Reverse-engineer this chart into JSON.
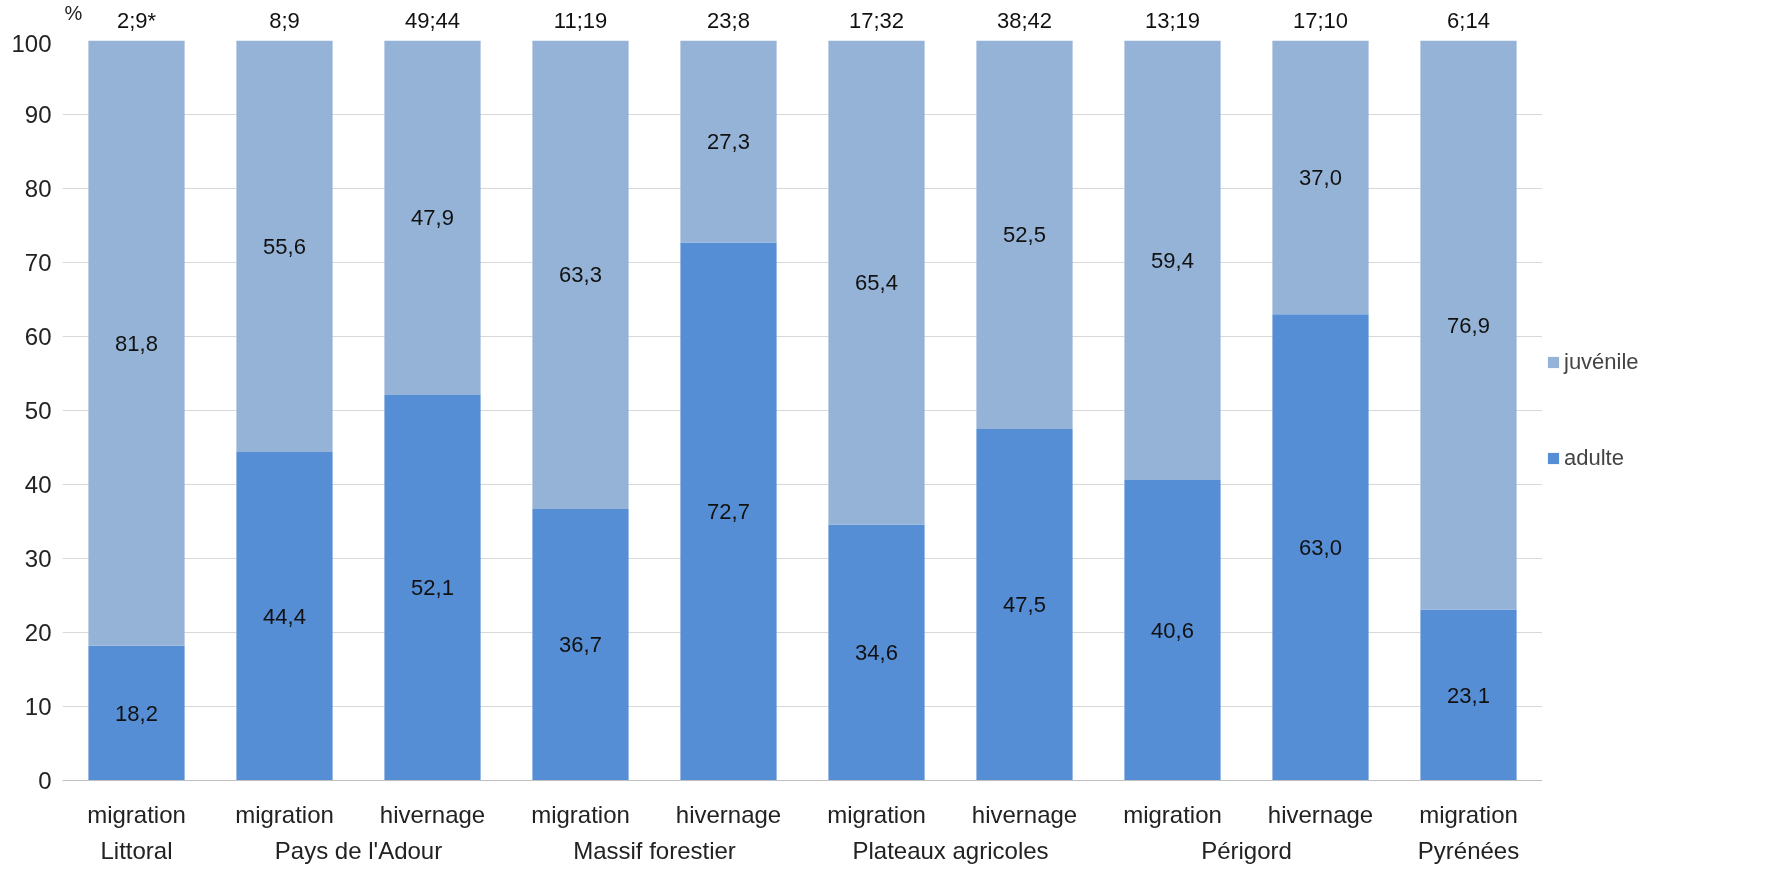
{
  "chart_data": {
    "type": "bar",
    "stacked": true,
    "ylabel": "%",
    "categories": [
      "migration",
      "migration",
      "hivernage",
      "migration",
      "hivernage",
      "migration",
      "hivernage",
      "migration",
      "hivernage",
      "migration"
    ],
    "series": [
      {
        "name": "adulte",
        "color": "#558ed5",
        "values": [
          18.2,
          44.4,
          52.1,
          36.7,
          72.7,
          34.6,
          47.5,
          40.6,
          63.0,
          23.1
        ],
        "value_labels": [
          "18,2",
          "44,4",
          "52,1",
          "36,7",
          "72,7",
          "34,6",
          "47,5",
          "40,6",
          "63,0",
          "23,1"
        ]
      },
      {
        "name": "juvénile",
        "color": "#95b3d7",
        "values": [
          81.8,
          55.6,
          47.9,
          63.3,
          27.3,
          65.4,
          52.5,
          59.4,
          37.0,
          76.9
        ],
        "value_labels": [
          "81,8",
          "55,6",
          "47,9",
          "63,3",
          "27,3",
          "65,4",
          "52,5",
          "59,4",
          "37,0",
          "76,9"
        ]
      }
    ],
    "ylim": [
      0,
      100
    ],
    "yticks": [
      0,
      10,
      20,
      30,
      40,
      50,
      60,
      70,
      80,
      90,
      100
    ],
    "grid": "y",
    "legend": "right",
    "annotations": [
      "2;9*",
      "8;9",
      "49;44",
      "11;19",
      "23;8",
      "17;32",
      "38;42",
      "13;19",
      "17;10",
      "6;14",
      "Littoral",
      "Pays de l'Adour",
      "Massif forestier",
      "Plateaux agricoles",
      "Périgord",
      "Pyrénées"
    ]
  }
}
